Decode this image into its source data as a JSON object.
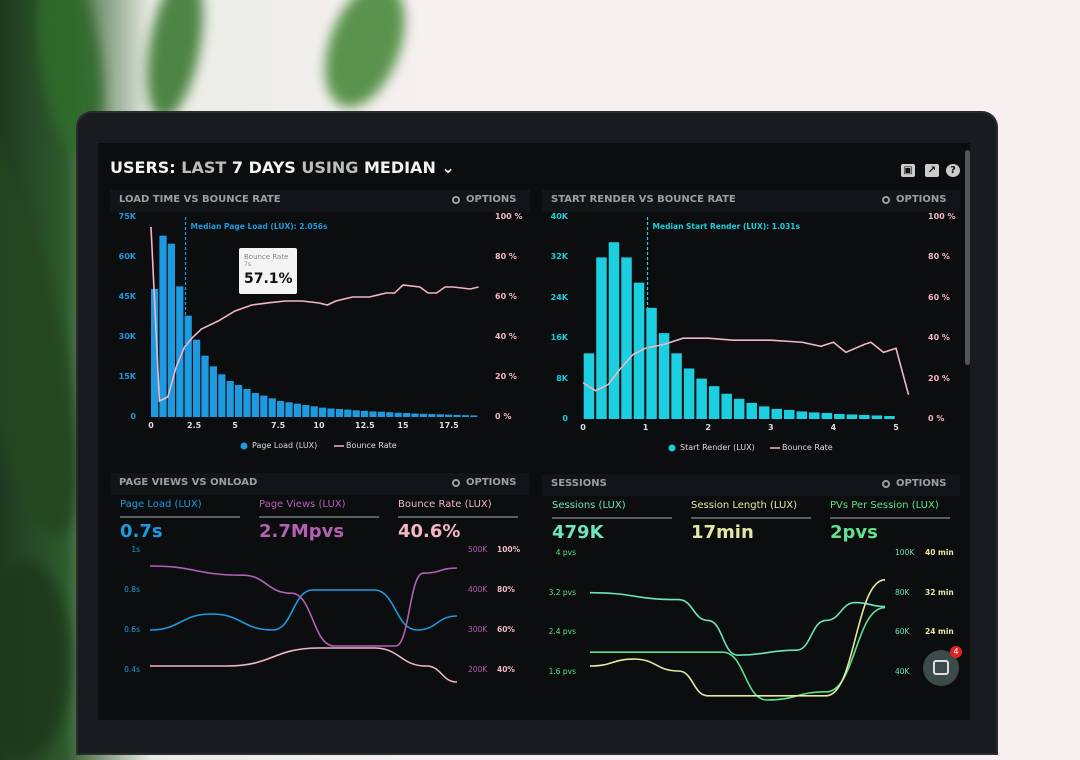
{
  "header": {
    "title_parts": [
      "USERS:",
      "LAST",
      "7 DAYS",
      "USING",
      "MEDIAN"
    ],
    "dropdown_icon": "chevron-down-icon",
    "icons": [
      "monitor-icon",
      "share-icon",
      "help-icon"
    ]
  },
  "panels": [
    {
      "title": "LOAD TIME VS BOUNCE RATE",
      "options": "OPTIONS",
      "median_label": "Median Page Load (LUX): 2.056s",
      "tooltip": {
        "title": "Bounce Rate",
        "sub": "7s",
        "value": "57.1%"
      },
      "legend": [
        "Page Load (LUX)",
        "Bounce Rate"
      ]
    },
    {
      "title": "START RENDER VS BOUNCE RATE",
      "options": "OPTIONS",
      "median_label": "Median Start Render (LUX): 1.031s",
      "legend": [
        "Start Render (LUX)",
        "Bounce Rate"
      ]
    },
    {
      "title": "PAGE VIEWS VS ONLOAD",
      "options": "OPTIONS",
      "stats": [
        {
          "label": "Page Load (LUX)",
          "value": "0.7s"
        },
        {
          "label": "Page Views (LUX)",
          "value": "2.7Mpvs"
        },
        {
          "label": "Bounce Rate (LUX)",
          "value": "40.6%"
        }
      ]
    },
    {
      "title": "SESSIONS",
      "options": "OPTIONS",
      "stats": [
        {
          "label": "Sessions (LUX)",
          "value": "479K"
        },
        {
          "label": "Session Length (LUX)",
          "value": "17min"
        },
        {
          "label": "PVs Per Session (LUX)",
          "value": "2pvs"
        }
      ]
    }
  ],
  "chat": {
    "badge": "4"
  },
  "colors": {
    "page_load": "#1e9be0",
    "start_render": "#1ccfe0",
    "bounce": "#f2b6c6",
    "page_views": "#b460b4",
    "sessions": "#6fe3c2",
    "session_length": "#e6e8a2",
    "pvs": "#62e08e"
  },
  "chart_data": [
    {
      "type": "bar",
      "title": "LOAD TIME VS BOUNCE RATE",
      "xlim": [
        0,
        19.5
      ],
      "xticks": [
        "0",
        "2.5",
        "5",
        "7.5",
        "10",
        "12.5",
        "15",
        "17.5"
      ],
      "yticks_left": [
        "75K",
        "60K",
        "45K",
        "30K",
        "15K",
        "0"
      ],
      "ylim_left": [
        0,
        75000
      ],
      "yticks_right": [
        "100 %",
        "80 %",
        "60 %",
        "40 %",
        "20 %",
        "0 %"
      ],
      "ylim_right": [
        0,
        100
      ],
      "legend": "bottom",
      "series": [
        {
          "name": "Page Load (LUX)",
          "type": "bar",
          "bin": 0.5,
          "values": [
            48000,
            68000,
            65000,
            49000,
            38000,
            29000,
            23000,
            19000,
            16000,
            13500,
            12000,
            10500,
            9000,
            8000,
            7000,
            6000,
            5500,
            5000,
            4500,
            4000,
            3500,
            3200,
            3000,
            2800,
            2500,
            2300,
            2100,
            2000,
            1800,
            1600,
            1500,
            1300,
            1200,
            1100,
            1000,
            900,
            800,
            700,
            600
          ]
        },
        {
          "name": "Bounce Rate",
          "type": "line",
          "axis": "right",
          "x": [
            0,
            0.5,
            1,
            1.5,
            2,
            2.5,
            3,
            4,
            5,
            6,
            7,
            8,
            9,
            10,
            10.5,
            11,
            12,
            13,
            14,
            14.5,
            15,
            16,
            16.5,
            17,
            17.5,
            18,
            19,
            19.5
          ],
          "y": [
            95,
            8,
            10,
            25,
            35,
            40,
            44,
            48,
            53,
            56,
            57.1,
            58,
            58,
            57,
            56,
            58,
            60,
            60,
            62,
            62,
            66,
            65,
            62,
            62,
            65,
            65,
            64,
            65
          ]
        }
      ],
      "median": 2.056
    },
    {
      "type": "bar",
      "title": "START RENDER VS BOUNCE RATE",
      "xlim": [
        0,
        5.2
      ],
      "xticks": [
        "0",
        "1",
        "2",
        "3",
        "4",
        "5"
      ],
      "yticks_left": [
        "40K",
        "32K",
        "24K",
        "16K",
        "8K",
        "0"
      ],
      "ylim_left": [
        0,
        40000
      ],
      "yticks_right": [
        "100 %",
        "80 %",
        "60 %",
        "40 %",
        "20 %",
        "0 %"
      ],
      "ylim_right": [
        0,
        100
      ],
      "legend": "bottom",
      "series": [
        {
          "name": "Start Render (LUX)",
          "type": "bar",
          "bin": 0.2,
          "values": [
            13000,
            32000,
            35000,
            32000,
            27000,
            22000,
            17000,
            13000,
            10000,
            8000,
            6500,
            5000,
            4000,
            3200,
            2500,
            2000,
            1800,
            1500,
            1300,
            1200,
            1000,
            900,
            800,
            700,
            600
          ]
        },
        {
          "name": "Bounce Rate",
          "type": "line",
          "axis": "right",
          "x": [
            0,
            0.2,
            0.4,
            0.6,
            0.8,
            1,
            1.3,
            1.6,
            2,
            2.4,
            3,
            3.5,
            3.8,
            4,
            4.2,
            4.5,
            4.6,
            4.8,
            5,
            5.2
          ],
          "y": [
            18,
            14,
            17,
            25,
            32,
            35,
            37,
            40,
            40,
            39,
            39,
            38,
            36,
            38,
            33,
            37,
            38,
            33,
            35,
            12
          ]
        }
      ],
      "median": 1.031
    },
    {
      "type": "line",
      "title": "PAGE VIEWS VS ONLOAD",
      "yticks_left": [
        "1s",
        "0.8s",
        "0.6s",
        "0.4s"
      ],
      "ylim_left": [
        0.4,
        1.0
      ],
      "yticks_right_1": [
        "500K",
        "400K",
        "300K",
        "200K"
      ],
      "ylim_right_1": [
        200000,
        500000
      ],
      "yticks_right_2": [
        "100%",
        "80%",
        "60%",
        "40%"
      ],
      "ylim_right_2": [
        40,
        100
      ],
      "xlim": [
        0,
        10
      ],
      "series": [
        {
          "name": "Page Load (LUX)",
          "axis": "left",
          "x": [
            0,
            2,
            4,
            5.3,
            7.3,
            8.7,
            10
          ],
          "y": [
            0.6,
            0.68,
            0.6,
            0.8,
            0.8,
            0.6,
            0.67
          ]
        },
        {
          "name": "Page Views (LUX)",
          "axis": "right_1",
          "x": [
            0,
            3,
            4.6,
            6,
            8,
            8.9,
            10
          ],
          "y": [
            460000,
            437000,
            392000,
            260000,
            260000,
            442000,
            455000
          ]
        },
        {
          "name": "Bounce Rate (LUX)",
          "axis": "right_2",
          "x": [
            0,
            2.5,
            5.5,
            7.3,
            9,
            10
          ],
          "y": [
            42,
            42,
            51,
            51,
            42,
            34
          ]
        }
      ]
    },
    {
      "type": "line",
      "title": "SESSIONS",
      "yticks_left": [
        "4 pvs",
        "3.2 pvs",
        "2.4 pvs",
        "1.6 pvs"
      ],
      "ylim_left": [
        1.6,
        4
      ],
      "yticks_right_1": [
        "100K",
        "80K",
        "60K",
        "40K"
      ],
      "ylim_right_1": [
        40000,
        100000
      ],
      "yticks_right_2": [
        "40 min",
        "32 min",
        "24 min"
      ],
      "ylim_right_2": [
        16,
        40
      ],
      "xlim": [
        0,
        10
      ],
      "series": [
        {
          "name": "Sessions (LUX)",
          "axis": "right_1",
          "x": [
            0,
            3,
            4,
            5,
            7,
            8,
            9,
            10
          ],
          "y": [
            80000,
            76500,
            66000,
            48500,
            51000,
            66000,
            75000,
            73000
          ]
        },
        {
          "name": "PVs Per Session (LUX)",
          "axis": "left",
          "x": [
            0,
            4.5,
            6,
            8,
            10
          ],
          "y": [
            2.0,
            2.0,
            0.9,
            1.2,
            2.9
          ]
        },
        {
          "name": "Session Length (LUX)",
          "axis": "right_2",
          "x": [
            0,
            1.5,
            3,
            4,
            8,
            10
          ],
          "y": [
            17.2,
            18.6,
            16.2,
            11.2,
            11.2,
            34.6
          ]
        }
      ]
    }
  ]
}
